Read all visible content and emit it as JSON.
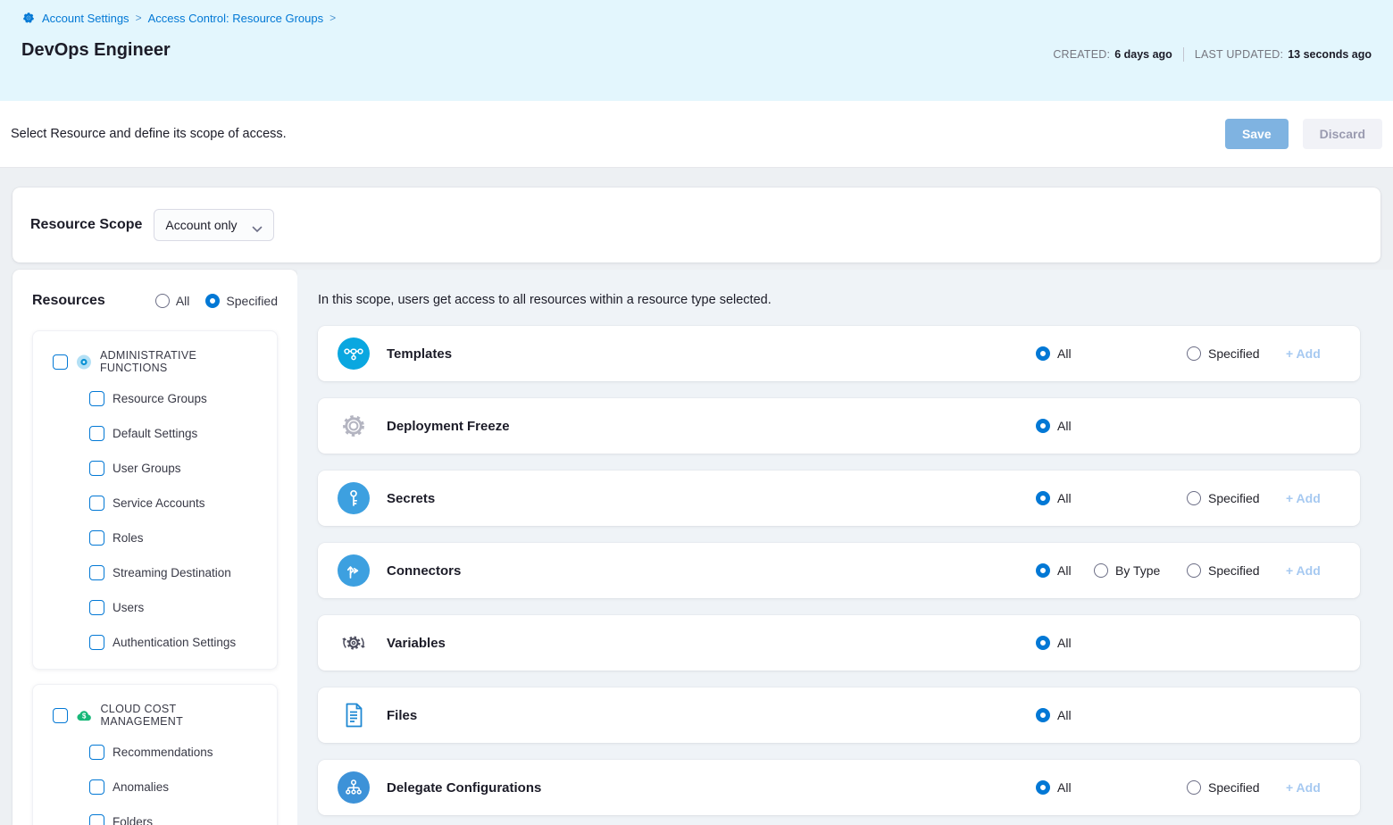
{
  "breadcrumb": {
    "separator": ">",
    "items": [
      "Account Settings",
      "Access Control: Resource Groups"
    ]
  },
  "header": {
    "title": "DevOps Engineer",
    "created_label": "CREATED:",
    "created_value": "6 days ago",
    "updated_label": "LAST UPDATED:",
    "updated_value": "13 seconds ago"
  },
  "toolbar": {
    "description": "Select Resource and define its scope of access.",
    "save_label": "Save",
    "discard_label": "Discard"
  },
  "resource_scope": {
    "label": "Resource Scope",
    "selected_option": "Account only"
  },
  "sidebar": {
    "title": "Resources",
    "radio_options": [
      "All",
      "Specified"
    ],
    "selected_radio": "Specified",
    "sections": [
      {
        "label": "ADMINISTRATIVE FUNCTIONS",
        "icon": "admin-functions-icon",
        "checked": false,
        "items": [
          "Resource Groups",
          "Default Settings",
          "User Groups",
          "Service Accounts",
          "Roles",
          "Streaming Destination",
          "Users",
          "Authentication Settings"
        ]
      },
      {
        "label": "CLOUD COST MANAGEMENT",
        "icon": "cloud-cost-icon",
        "checked": false,
        "items": [
          "Recommendations",
          "Anomalies",
          "Folders"
        ]
      }
    ]
  },
  "main": {
    "description": "In this scope, users get access to all resources within a resource type selected.",
    "add_label": "+ Add",
    "rows": [
      {
        "label": "Templates",
        "icon": "templates-icon",
        "options": [
          "All",
          "Specified"
        ],
        "selected": "All",
        "has_add": true
      },
      {
        "label": "Deployment Freeze",
        "icon": "deployment-freeze-icon",
        "options": [
          "All"
        ],
        "selected": "All",
        "has_add": false
      },
      {
        "label": "Secrets",
        "icon": "secrets-icon",
        "options": [
          "All",
          "Specified"
        ],
        "selected": "All",
        "has_add": true
      },
      {
        "label": "Connectors",
        "icon": "connectors-icon",
        "options": [
          "All",
          "By Type",
          "Specified"
        ],
        "selected": "All",
        "has_add": true
      },
      {
        "label": "Variables",
        "icon": "variables-icon",
        "options": [
          "All"
        ],
        "selected": "All",
        "has_add": false
      },
      {
        "label": "Files",
        "icon": "files-icon",
        "options": [
          "All"
        ],
        "selected": "All",
        "has_add": false
      },
      {
        "label": "Delegate Configurations",
        "icon": "delegate-configurations-icon",
        "options": [
          "All",
          "Specified"
        ],
        "selected": "All",
        "has_add": true
      }
    ]
  },
  "colors": {
    "accent_blue": "#0278d5",
    "header_bg": "#e3f6fd",
    "save_button_bg": "#7fb3e1",
    "add_link_blue": "#a6c9f1",
    "row_icon_cyan": "#0aa7e0",
    "row_icon_blue": "#3da0e0",
    "ccm_green": "#18b879",
    "main_bg": "#eff3f7"
  }
}
